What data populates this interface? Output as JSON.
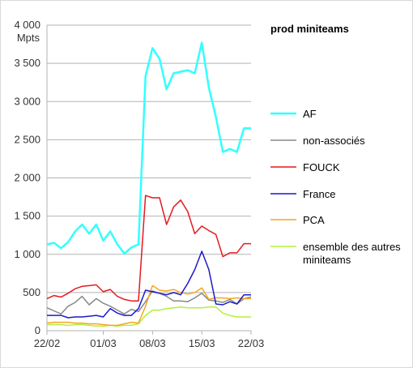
{
  "chart_data": {
    "type": "line",
    "title": "prod miniteams",
    "ylabel": "Mpts",
    "xlabel": "",
    "ylim": [
      0,
      4000
    ],
    "y_ticks": [
      0,
      500,
      1000,
      1500,
      2000,
      2500,
      3000,
      3500,
      4000
    ],
    "y_tick_labels": [
      "0",
      "500",
      "1 000",
      "1 500",
      "2 000",
      "2 500",
      "3 000",
      "3 500",
      "4 000"
    ],
    "x": [
      "22/02",
      "23/02",
      "24/02",
      "25/02",
      "26/02",
      "27/02",
      "28/02",
      "29/02",
      "01/03",
      "02/03",
      "03/03",
      "04/03",
      "05/03",
      "06/03",
      "07/03",
      "08/03",
      "09/03",
      "10/03",
      "11/03",
      "12/03",
      "13/03",
      "14/03",
      "15/03",
      "16/03",
      "17/03",
      "18/03",
      "19/03",
      "20/03",
      "21/03",
      "22/03"
    ],
    "x_tick_labels": [
      "22/02",
      "01/03",
      "08/03",
      "15/03",
      "22/03"
    ],
    "x_tick_positions": [
      0,
      8,
      15,
      22,
      29
    ],
    "grid": "horizontal",
    "legend_position": "right",
    "series": [
      {
        "name": "AF",
        "color": "#33ffff",
        "stroke_width": 2.5,
        "values": [
          1130,
          1150,
          1080,
          1160,
          1300,
          1390,
          1270,
          1390,
          1180,
          1300,
          1130,
          1010,
          1090,
          1130,
          3330,
          3700,
          3560,
          3160,
          3370,
          3390,
          3410,
          3370,
          3770,
          3180,
          2800,
          2340,
          2380,
          2340,
          2650,
          2650
        ]
      },
      {
        "name": "non-associés",
        "color": "#888888",
        "stroke_width": 1.5,
        "values": [
          300,
          260,
          220,
          320,
          370,
          450,
          340,
          420,
          360,
          320,
          270,
          220,
          280,
          250,
          380,
          520,
          490,
          450,
          390,
          390,
          380,
          430,
          490,
          400,
          390,
          370,
          410,
          350,
          420,
          440
        ]
      },
      {
        "name": "FOUCK",
        "color": "#e6191e",
        "stroke_width": 1.5,
        "values": [
          420,
          460,
          440,
          490,
          550,
          580,
          590,
          600,
          510,
          540,
          450,
          410,
          390,
          390,
          1770,
          1740,
          1740,
          1390,
          1620,
          1710,
          1560,
          1270,
          1370,
          1310,
          1260,
          970,
          1020,
          1020,
          1140,
          1140
        ]
      },
      {
        "name": "France",
        "color": "#1a1acc",
        "stroke_width": 1.5,
        "values": [
          200,
          200,
          200,
          170,
          180,
          180,
          190,
          200,
          180,
          290,
          230,
          200,
          200,
          290,
          530,
          510,
          490,
          470,
          500,
          470,
          620,
          800,
          1040,
          800,
          350,
          340,
          380,
          350,
          470,
          470
        ]
      },
      {
        "name": "PCA",
        "color": "#f5a623",
        "stroke_width": 1.5,
        "values": [
          100,
          110,
          110,
          110,
          100,
          100,
          90,
          90,
          80,
          70,
          70,
          90,
          110,
          100,
          320,
          590,
          530,
          520,
          540,
          500,
          480,
          500,
          560,
          410,
          430,
          430,
          420,
          430,
          420,
          420
        ]
      },
      {
        "name": "ensemble des autres miniteams",
        "color": "#b4f03c",
        "stroke_width": 1.5,
        "values": [
          80,
          80,
          80,
          70,
          80,
          80,
          70,
          60,
          60,
          70,
          60,
          70,
          70,
          90,
          200,
          270,
          270,
          290,
          300,
          310,
          300,
          300,
          300,
          310,
          310,
          230,
          200,
          180,
          180,
          180
        ]
      }
    ]
  },
  "legend": {
    "items": [
      {
        "lines": [
          "AF"
        ],
        "color": "#33ffff"
      },
      {
        "lines": [
          "non-associés"
        ],
        "color": "#888888"
      },
      {
        "lines": [
          "FOUCK"
        ],
        "color": "#e6191e"
      },
      {
        "lines": [
          "France"
        ],
        "color": "#1a1acc"
      },
      {
        "lines": [
          "PCA"
        ],
        "color": "#f5a623"
      },
      {
        "lines": [
          "ensemble des autres",
          "miniteams"
        ],
        "color": "#b4f03c"
      }
    ]
  },
  "colors": {
    "grid": "#b3b3b3",
    "axis": "#b3b3b3",
    "frame_border": "#d9d9d9"
  }
}
